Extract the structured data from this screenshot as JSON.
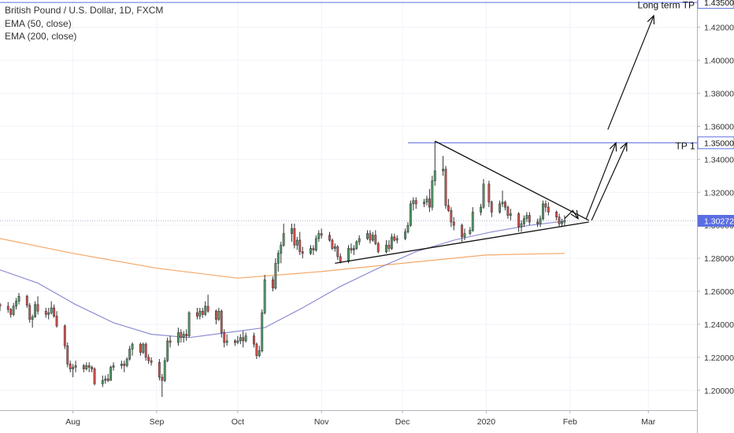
{
  "legend": {
    "symbol": "British Pound / U.S. Dollar, 1D, FXCM",
    "ema50": "EMA (50, close)",
    "ema200": "EMA (200, close)"
  },
  "colors": {
    "up": "#53a26b",
    "down": "#e0514d",
    "wick": "#333333",
    "ema50": "#8e8ed4",
    "ema200": "#f5a868",
    "hline": "#5b6ee1",
    "grid": "#f0f3fa",
    "last_price_bg": "#5b6ee1"
  },
  "chart_data": {
    "type": "candlestick",
    "title": "British Pound / U.S. Dollar, 1D, FXCM",
    "ylim": [
      1.188,
      1.4365
    ],
    "y_ticks": [
      "1.20000",
      "1.22000",
      "1.24000",
      "1.26000",
      "1.28000",
      "1.30000",
      "1.32000",
      "1.34000",
      "1.36000",
      "1.38000",
      "1.40000",
      "1.42000"
    ],
    "x_ticks": [
      {
        "label": "Aug",
        "date": "2019-08-01"
      },
      {
        "label": "Sep",
        "date": "2019-09-01"
      },
      {
        "label": "Oct",
        "date": "2019-10-01"
      },
      {
        "label": "Nov",
        "date": "2019-11-01"
      },
      {
        "label": "Dec",
        "date": "2019-12-01"
      },
      {
        "label": "2020",
        "date": "2020-01-01"
      },
      {
        "label": "Feb",
        "date": "2020-02-01"
      },
      {
        "label": "Mar",
        "date": "2020-03-01"
      }
    ],
    "x_range": [
      "2019-07-05",
      "2020-03-19"
    ],
    "candles": [
      [
        "2019-07-05",
        1.252,
        1.253,
        1.248,
        1.251
      ],
      [
        "2019-07-08",
        1.251,
        1.2535,
        1.247,
        1.249
      ],
      [
        "2019-07-09",
        1.249,
        1.25,
        1.244,
        1.246
      ],
      [
        "2019-07-10",
        1.246,
        1.253,
        1.245,
        1.251
      ],
      [
        "2019-07-11",
        1.251,
        1.256,
        1.249,
        1.254
      ],
      [
        "2019-07-12",
        1.254,
        1.259,
        1.252,
        1.257
      ],
      [
        "2019-07-15",
        1.257,
        1.258,
        1.25,
        1.2515
      ],
      [
        "2019-07-16",
        1.2515,
        1.253,
        1.241,
        1.243
      ],
      [
        "2019-07-17",
        1.243,
        1.246,
        1.238,
        1.2445
      ],
      [
        "2019-07-18",
        1.2445,
        1.254,
        1.244,
        1.252
      ],
      [
        "2019-07-19",
        1.252,
        1.257,
        1.246,
        1.248
      ],
      [
        "2019-07-22",
        1.248,
        1.25,
        1.244,
        1.246
      ],
      [
        "2019-07-23",
        1.246,
        1.25,
        1.243,
        1.247
      ],
      [
        "2019-07-24",
        1.247,
        1.254,
        1.246,
        1.25
      ],
      [
        "2019-07-25",
        1.25,
        1.252,
        1.244,
        1.245
      ],
      [
        "2019-07-26",
        1.245,
        1.248,
        1.238,
        1.239
      ],
      [
        "2019-07-29",
        1.239,
        1.24,
        1.225,
        1.227
      ],
      [
        "2019-07-30",
        1.227,
        1.229,
        1.214,
        1.216
      ],
      [
        "2019-07-31",
        1.216,
        1.218,
        1.211,
        1.213
      ],
      [
        "2019-08-01",
        1.213,
        1.216,
        1.208,
        1.214
      ],
      [
        "2019-08-02",
        1.214,
        1.218,
        1.211,
        1.215
      ],
      [
        "2019-08-05",
        1.215,
        1.216,
        1.211,
        1.213
      ],
      [
        "2019-08-06",
        1.213,
        1.217,
        1.212,
        1.215
      ],
      [
        "2019-08-07",
        1.215,
        1.217,
        1.211,
        1.214
      ],
      [
        "2019-08-08",
        1.214,
        1.215,
        1.211,
        1.213
      ],
      [
        "2019-08-09",
        1.213,
        1.214,
        1.203,
        1.204
      ],
      [
        "2019-08-12",
        1.204,
        1.209,
        1.202,
        1.206
      ],
      [
        "2019-08-13",
        1.206,
        1.209,
        1.204,
        1.207
      ],
      [
        "2019-08-14",
        1.207,
        1.21,
        1.205,
        1.206
      ],
      [
        "2019-08-15",
        1.206,
        1.215,
        1.206,
        1.214
      ],
      [
        "2019-08-16",
        1.214,
        1.217,
        1.212,
        1.215
      ],
      [
        "2019-08-19",
        1.215,
        1.218,
        1.213,
        1.216
      ],
      [
        "2019-08-20",
        1.216,
        1.218,
        1.211,
        1.215
      ],
      [
        "2019-08-21",
        1.215,
        1.22,
        1.214,
        1.219
      ],
      [
        "2019-08-22",
        1.219,
        1.227,
        1.218,
        1.225
      ],
      [
        "2019-08-23",
        1.225,
        1.229,
        1.221,
        1.228
      ],
      [
        "2019-08-26",
        1.228,
        1.229,
        1.221,
        1.223
      ],
      [
        "2019-08-27",
        1.223,
        1.229,
        1.222,
        1.228
      ],
      [
        "2019-08-28",
        1.228,
        1.229,
        1.218,
        1.22
      ],
      [
        "2019-08-29",
        1.22,
        1.222,
        1.216,
        1.218
      ],
      [
        "2019-08-30",
        1.218,
        1.22,
        1.215,
        1.217
      ],
      [
        "2019-09-02",
        1.217,
        1.219,
        1.206,
        1.208
      ],
      [
        "2019-09-03",
        1.208,
        1.21,
        1.196,
        1.206
      ],
      [
        "2019-09-04",
        1.206,
        1.22,
        1.205,
        1.218
      ],
      [
        "2019-09-05",
        1.218,
        1.232,
        1.217,
        1.23
      ],
      [
        "2019-09-06",
        1.23,
        1.233,
        1.226,
        1.229
      ],
      [
        "2019-09-09",
        1.229,
        1.238,
        1.227,
        1.235
      ],
      [
        "2019-09-10",
        1.235,
        1.237,
        1.229,
        1.232
      ],
      [
        "2019-09-11",
        1.232,
        1.236,
        1.229,
        1.234
      ],
      [
        "2019-09-12",
        1.234,
        1.237,
        1.23,
        1.233
      ],
      [
        "2019-09-13",
        1.233,
        1.248,
        1.232,
        1.247
      ],
      [
        "2019-09-16",
        1.247,
        1.25,
        1.243,
        1.245
      ],
      [
        "2019-09-17",
        1.245,
        1.25,
        1.243,
        1.248
      ],
      [
        "2019-09-18",
        1.248,
        1.25,
        1.244,
        1.246
      ],
      [
        "2019-09-19",
        1.246,
        1.254,
        1.245,
        1.251
      ],
      [
        "2019-09-20",
        1.251,
        1.258,
        1.247,
        1.248
      ],
      [
        "2019-09-23",
        1.248,
        1.249,
        1.24,
        1.243
      ],
      [
        "2019-09-24",
        1.243,
        1.25,
        1.242,
        1.248
      ],
      [
        "2019-09-25",
        1.248,
        1.249,
        1.232,
        1.235
      ],
      [
        "2019-09-26",
        1.235,
        1.237,
        1.226,
        1.229
      ],
      [
        "2019-09-27",
        1.229,
        1.234,
        1.227,
        1.23
      ],
      [
        "2019-09-30",
        1.23,
        1.231,
        1.227,
        1.229
      ],
      [
        "2019-10-01",
        1.229,
        1.233,
        1.228,
        1.23
      ],
      [
        "2019-10-02",
        1.23,
        1.234,
        1.228,
        1.232
      ],
      [
        "2019-10-03",
        1.232,
        1.236,
        1.226,
        1.23
      ],
      [
        "2019-10-04",
        1.23,
        1.235,
        1.229,
        1.233
      ],
      [
        "2019-10-07",
        1.233,
        1.235,
        1.226,
        1.228
      ],
      [
        "2019-10-08",
        1.228,
        1.229,
        1.219,
        1.221
      ],
      [
        "2019-10-09",
        1.221,
        1.227,
        1.22,
        1.224
      ],
      [
        "2019-10-10",
        1.224,
        1.249,
        1.223,
        1.247
      ],
      [
        "2019-10-11",
        1.247,
        1.27,
        1.246,
        1.267
      ],
      [
        "2019-10-14",
        1.267,
        1.269,
        1.26,
        1.262
      ],
      [
        "2019-10-15",
        1.262,
        1.28,
        1.261,
        1.277
      ],
      [
        "2019-10-16",
        1.277,
        1.285,
        1.272,
        1.283
      ],
      [
        "2019-10-17",
        1.283,
        1.29,
        1.277,
        1.288
      ],
      [
        "2019-10-18",
        1.288,
        1.301,
        1.287,
        1.295
      ],
      [
        "2019-10-21",
        1.295,
        1.301,
        1.29,
        1.298
      ],
      [
        "2019-10-22",
        1.298,
        1.301,
        1.286,
        1.288
      ],
      [
        "2019-10-23",
        1.288,
        1.293,
        1.285,
        1.291
      ],
      [
        "2019-10-24",
        1.291,
        1.296,
        1.282,
        1.284
      ],
      [
        "2019-10-25",
        1.284,
        1.287,
        1.28,
        1.283
      ],
      [
        "2019-10-28",
        1.283,
        1.288,
        1.282,
        1.286
      ],
      [
        "2019-10-29",
        1.286,
        1.288,
        1.282,
        1.285
      ],
      [
        "2019-10-30",
        1.285,
        1.294,
        1.284,
        1.292
      ],
      [
        "2019-10-31",
        1.292,
        1.297,
        1.29,
        1.295
      ],
      [
        "2019-11-01",
        1.295,
        1.298,
        1.292,
        1.294
      ],
      [
        "2019-11-04",
        1.294,
        1.296,
        1.29,
        1.291
      ],
      [
        "2019-11-05",
        1.291,
        1.292,
        1.285,
        1.286
      ],
      [
        "2019-11-06",
        1.286,
        1.289,
        1.284,
        1.287
      ],
      [
        "2019-11-07",
        1.287,
        1.288,
        1.279,
        1.281
      ],
      [
        "2019-11-08",
        1.281,
        1.283,
        1.277,
        1.278
      ],
      [
        "2019-11-11",
        1.278,
        1.288,
        1.277,
        1.286
      ],
      [
        "2019-11-12",
        1.286,
        1.289,
        1.283,
        1.285
      ],
      [
        "2019-11-13",
        1.285,
        1.288,
        1.282,
        1.286
      ],
      [
        "2019-11-14",
        1.286,
        1.291,
        1.285,
        1.29
      ],
      [
        "2019-11-15",
        1.29,
        1.294,
        1.288,
        1.292
      ],
      [
        "2019-11-18",
        1.292,
        1.297,
        1.291,
        1.295
      ],
      [
        "2019-11-19",
        1.295,
        1.297,
        1.289,
        1.291
      ],
      [
        "2019-11-20",
        1.291,
        1.296,
        1.29,
        1.294
      ],
      [
        "2019-11-21",
        1.294,
        1.297,
        1.288,
        1.289
      ],
      [
        "2019-11-22",
        1.289,
        1.29,
        1.283,
        1.284
      ],
      [
        "2019-11-25",
        1.284,
        1.291,
        1.283,
        1.288
      ],
      [
        "2019-11-26",
        1.288,
        1.291,
        1.284,
        1.286
      ],
      [
        "2019-11-27",
        1.286,
        1.295,
        1.285,
        1.293
      ],
      [
        "2019-11-28",
        1.293,
        1.295,
        1.29,
        1.291
      ],
      [
        "2019-11-29",
        1.291,
        1.294,
        1.289,
        1.292
      ],
      [
        "2019-12-02",
        1.292,
        1.298,
        1.291,
        1.296
      ],
      [
        "2019-12-03",
        1.296,
        1.302,
        1.295,
        1.3
      ],
      [
        "2019-12-04",
        1.3,
        1.315,
        1.299,
        1.313
      ],
      [
        "2019-12-05",
        1.313,
        1.317,
        1.309,
        1.315
      ],
      [
        "2019-12-06",
        1.315,
        1.317,
        1.31,
        1.313
      ],
      [
        "2019-12-09",
        1.313,
        1.316,
        1.311,
        1.314
      ],
      [
        "2019-12-10",
        1.314,
        1.318,
        1.312,
        1.316
      ],
      [
        "2019-12-11",
        1.316,
        1.322,
        1.308,
        1.311
      ],
      [
        "2019-12-12",
        1.311,
        1.33,
        1.309,
        1.327
      ],
      [
        "2019-12-13",
        1.327,
        1.351,
        1.324,
        1.333
      ],
      [
        "2019-12-16",
        1.333,
        1.342,
        1.33,
        1.334
      ],
      [
        "2019-12-17",
        1.334,
        1.336,
        1.31,
        1.312
      ],
      [
        "2019-12-18",
        1.312,
        1.316,
        1.308,
        1.309
      ],
      [
        "2019-12-19",
        1.309,
        1.311,
        1.299,
        1.302
      ],
      [
        "2019-12-20",
        1.302,
        1.305,
        1.297,
        1.3
      ],
      [
        "2019-12-23",
        1.3,
        1.301,
        1.29,
        1.293
      ],
      [
        "2019-12-24",
        1.293,
        1.298,
        1.291,
        1.295
      ],
      [
        "2019-12-26",
        1.295,
        1.299,
        1.294,
        1.297
      ],
      [
        "2019-12-27",
        1.297,
        1.311,
        1.296,
        1.308
      ],
      [
        "2019-12-30",
        1.308,
        1.313,
        1.306,
        1.311
      ],
      [
        "2019-12-31",
        1.311,
        1.328,
        1.31,
        1.325
      ],
      [
        "2020-01-02",
        1.325,
        1.327,
        1.311,
        1.314
      ],
      [
        "2020-01-03",
        1.314,
        1.315,
        1.305,
        1.308
      ],
      [
        "2020-01-06",
        1.308,
        1.315,
        1.307,
        1.313
      ],
      [
        "2020-01-07",
        1.313,
        1.321,
        1.311,
        1.314
      ],
      [
        "2020-01-08",
        1.314,
        1.315,
        1.309,
        1.311
      ],
      [
        "2020-01-09",
        1.311,
        1.312,
        1.304,
        1.306
      ],
      [
        "2020-01-10",
        1.306,
        1.31,
        1.303,
        1.307
      ],
      [
        "2020-01-13",
        1.307,
        1.308,
        1.296,
        1.299
      ],
      [
        "2020-01-14",
        1.299,
        1.303,
        1.296,
        1.301
      ],
      [
        "2020-01-15",
        1.301,
        1.306,
        1.299,
        1.304
      ],
      [
        "2020-01-16",
        1.304,
        1.308,
        1.302,
        1.306
      ],
      [
        "2020-01-17",
        1.306,
        1.308,
        1.3,
        1.302
      ],
      [
        "2020-01-20",
        1.302,
        1.304,
        1.299,
        1.301
      ],
      [
        "2020-01-21",
        1.301,
        1.306,
        1.299,
        1.304
      ],
      [
        "2020-01-22",
        1.304,
        1.315,
        1.303,
        1.313
      ],
      [
        "2020-01-23",
        1.313,
        1.315,
        1.308,
        1.311
      ],
      [
        "2020-01-24",
        1.311,
        1.314,
        1.306,
        1.308
      ],
      [
        "2020-01-27",
        1.308,
        1.309,
        1.303,
        1.305
      ],
      [
        "2020-01-28",
        1.305,
        1.307,
        1.299,
        1.301
      ],
      [
        "2020-01-29",
        1.301,
        1.304,
        1.299,
        1.302
      ],
      [
        "2020-01-30",
        1.302,
        1.306,
        1.3,
        1.303
      ]
    ],
    "ema50": [
      [
        "2019-07-05",
        1.273
      ],
      [
        "2019-07-19",
        1.265
      ],
      [
        "2019-08-02",
        1.252
      ],
      [
        "2019-08-16",
        1.241
      ],
      [
        "2019-08-30",
        1.234
      ],
      [
        "2019-09-13",
        1.232
      ],
      [
        "2019-09-27",
        1.235
      ],
      [
        "2019-10-11",
        1.238
      ],
      [
        "2019-10-25",
        1.25
      ],
      [
        "2019-11-08",
        1.263
      ],
      [
        "2019-11-22",
        1.274
      ],
      [
        "2019-12-06",
        1.284
      ],
      [
        "2019-12-20",
        1.291
      ],
      [
        "2020-01-03",
        1.296
      ],
      [
        "2020-01-17",
        1.3
      ],
      [
        "2020-01-30",
        1.3025
      ]
    ],
    "ema200": [
      [
        "2019-07-05",
        1.292
      ],
      [
        "2019-08-01",
        1.283
      ],
      [
        "2019-09-01",
        1.274
      ],
      [
        "2019-10-01",
        1.268
      ],
      [
        "2019-11-01",
        1.272
      ],
      [
        "2019-12-01",
        1.277
      ],
      [
        "2020-01-01",
        1.282
      ],
      [
        "2020-01-30",
        1.283
      ]
    ],
    "horizontal_lines": [
      {
        "value": 1.435,
        "label": "1.43500"
      },
      {
        "value": 1.35,
        "label": "1.35000",
        "from_date": "2019-12-03"
      }
    ],
    "last_price": {
      "value": 1.30272,
      "label": "1.30272"
    },
    "trendlines": [
      {
        "from": [
          "2019-12-13",
          1.351
        ],
        "to": [
          "2020-02-08",
          1.303
        ]
      },
      {
        "from": [
          "2019-11-06",
          1.277
        ],
        "to": [
          "2020-02-08",
          1.302
        ]
      }
    ],
    "arrows": [
      [
        [
          "2020-01-30",
          1.304
        ],
        [
          "2020-02-02",
          1.309
        ],
        [
          "2020-02-04",
          1.304
        ]
      ],
      [
        [
          "2020-02-07",
          1.304
        ],
        [
          "2020-02-18",
          1.35
        ]
      ],
      [
        [
          "2020-02-09",
          1.303
        ],
        [
          "2020-02-22",
          1.35
        ]
      ],
      [
        [
          "2020-02-15",
          1.358
        ],
        [
          "2020-03-03",
          1.427
        ]
      ]
    ],
    "annotations": [
      {
        "text": "Long term TP",
        "at": [
          "2020-02-26",
          1.4315
        ]
      },
      {
        "text": "TP 1",
        "at": [
          "2020-03-11",
          1.346
        ]
      }
    ]
  }
}
